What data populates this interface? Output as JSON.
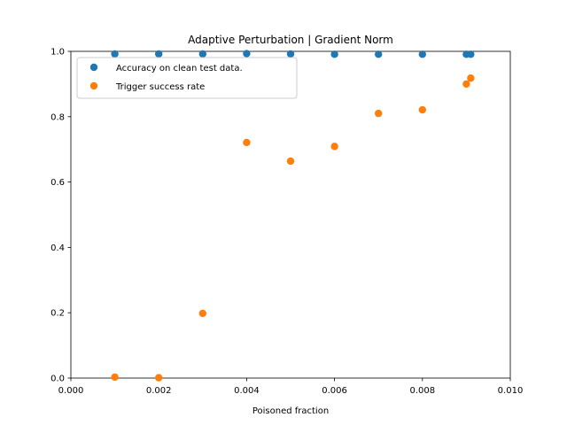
{
  "chart_data": {
    "type": "scatter",
    "title": "Adaptive Perturbation | Gradient Norm",
    "xlabel": "Poisoned fraction",
    "ylabel": "",
    "xlim": [
      0.0,
      0.01
    ],
    "ylim": [
      0.0,
      1.0
    ],
    "x_ticks": [
      0.0,
      0.002,
      0.004,
      0.006,
      0.008,
      0.01
    ],
    "x_tick_labels": [
      "0.000",
      "0.002",
      "0.004",
      "0.006",
      "0.008",
      "0.010"
    ],
    "y_ticks": [
      0.0,
      0.2,
      0.4,
      0.6,
      0.8,
      1.0
    ],
    "y_tick_labels": [
      "0.0",
      "0.2",
      "0.4",
      "0.6",
      "0.8",
      "1.0"
    ],
    "grid": false,
    "legend_position": "upper-left",
    "series": [
      {
        "name": "Accuracy on clean test data.",
        "color": "#1f77b4",
        "x": [
          0.001,
          0.002,
          0.003,
          0.004,
          0.005,
          0.006,
          0.007,
          0.008,
          0.009,
          0.0091
        ],
        "y": [
          0.992,
          0.992,
          0.992,
          0.993,
          0.992,
          0.991,
          0.991,
          0.991,
          0.991,
          0.991
        ]
      },
      {
        "name": "Trigger success rate",
        "color": "#ff7f0e",
        "x": [
          0.001,
          0.002,
          0.003,
          0.004,
          0.005,
          0.006,
          0.007,
          0.008,
          0.009,
          0.0091
        ],
        "y": [
          0.003,
          0.001,
          0.198,
          0.721,
          0.664,
          0.709,
          0.81,
          0.821,
          0.9,
          0.918
        ]
      }
    ]
  }
}
